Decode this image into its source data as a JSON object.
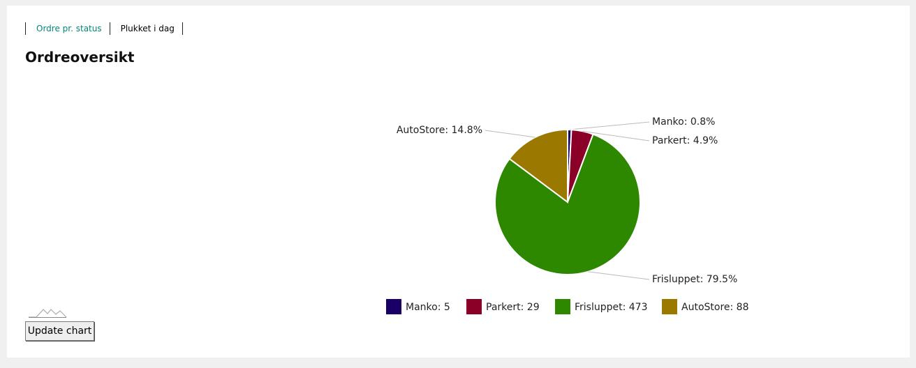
{
  "tabs": [
    "Ordre pr. status",
    "Plukket i dag"
  ],
  "heading": "Ordreoversikt",
  "chart_data": {
    "type": "pie",
    "categories": [
      "Manko",
      "Parkert",
      "Frisluppet",
      "AutoStore"
    ],
    "values": [
      5,
      29,
      473,
      88
    ],
    "value_labels": [
      "Manko: 5",
      "Parkert: 29",
      "Frisluppet: 473",
      "AutoStore: 88"
    ],
    "slice_labels": [
      "Manko: 0.8%",
      "Parkert: 4.9%",
      "Frisluppet: 79.5%",
      "AutoStore: 14.8%"
    ],
    "colors": [
      "#1a0066",
      "#8b0026",
      "#2d8800",
      "#9b7800"
    ]
  },
  "button": "Update chart"
}
